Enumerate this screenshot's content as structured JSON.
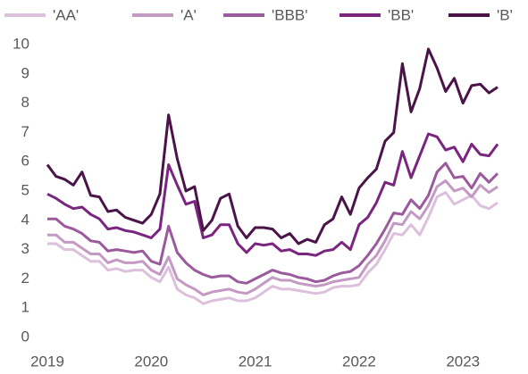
{
  "chart_data": {
    "type": "line",
    "categories": [
      "2019",
      null,
      null,
      null,
      null,
      null,
      null,
      null,
      null,
      null,
      null,
      null,
      "2020",
      null,
      null,
      null,
      null,
      null,
      null,
      null,
      null,
      null,
      null,
      null,
      "2021",
      null,
      null,
      null,
      null,
      null,
      null,
      null,
      null,
      null,
      null,
      null,
      "2022",
      null,
      null,
      null,
      null,
      null,
      null,
      null,
      null,
      null,
      null,
      null,
      "2023",
      null,
      null,
      null,
      null
    ],
    "ylim": [
      0,
      10
    ],
    "yticks": [
      0,
      1,
      2,
      3,
      4,
      5,
      6,
      7,
      8,
      9,
      10
    ],
    "grid": false,
    "legend": "top",
    "series": [
      {
        "name": "'AA'",
        "color": "#dcc0dc",
        "values": [
          3.2,
          3.2,
          3.0,
          3.0,
          2.8,
          2.6,
          2.6,
          2.3,
          2.35,
          2.25,
          2.3,
          2.3,
          2.05,
          1.9,
          2.4,
          1.65,
          1.45,
          1.35,
          1.15,
          1.25,
          1.3,
          1.35,
          1.25,
          1.25,
          1.35,
          1.55,
          1.75,
          1.65,
          1.65,
          1.6,
          1.55,
          1.5,
          1.55,
          1.7,
          1.75,
          1.75,
          1.8,
          2.2,
          2.5,
          3.0,
          3.55,
          3.5,
          3.85,
          3.5,
          4.1,
          4.8,
          4.95,
          4.55,
          4.7,
          4.85,
          4.5,
          4.4,
          4.6
        ]
      },
      {
        "name": "'A'",
        "color": "#c49ac4",
        "values": [
          3.5,
          3.5,
          3.25,
          3.25,
          3.05,
          2.85,
          2.85,
          2.55,
          2.65,
          2.55,
          2.55,
          2.6,
          2.3,
          2.15,
          2.75,
          2.0,
          1.8,
          1.65,
          1.45,
          1.55,
          1.6,
          1.65,
          1.55,
          1.5,
          1.65,
          1.85,
          2.05,
          1.95,
          1.95,
          1.85,
          1.8,
          1.75,
          1.8,
          1.9,
          1.95,
          2.0,
          2.05,
          2.5,
          2.8,
          3.3,
          3.9,
          3.85,
          4.3,
          4.05,
          4.5,
          5.15,
          5.35,
          5.0,
          5.1,
          4.8,
          5.2,
          4.95,
          5.15
        ]
      },
      {
        "name": "'BBB'",
        "color": "#9a5a9c",
        "values": [
          4.05,
          4.05,
          3.8,
          3.7,
          3.55,
          3.3,
          3.25,
          2.95,
          3.0,
          2.95,
          2.9,
          2.95,
          2.6,
          2.5,
          3.8,
          2.9,
          2.55,
          2.3,
          2.15,
          2.05,
          2.1,
          2.1,
          1.9,
          1.85,
          2.0,
          2.15,
          2.3,
          2.2,
          2.15,
          2.05,
          2.0,
          1.9,
          1.95,
          2.1,
          2.2,
          2.25,
          2.45,
          2.8,
          3.2,
          3.7,
          4.25,
          4.2,
          4.7,
          4.4,
          4.85,
          5.65,
          5.95,
          5.45,
          5.5,
          5.1,
          5.6,
          5.3,
          5.6
        ]
      },
      {
        "name": "'BB'",
        "color": "#7a2580",
        "values": [
          4.9,
          4.75,
          4.55,
          4.4,
          4.45,
          4.2,
          4.05,
          3.7,
          3.75,
          3.65,
          3.6,
          3.5,
          3.4,
          3.7,
          5.9,
          5.2,
          4.55,
          4.65,
          3.4,
          3.5,
          3.85,
          3.85,
          3.2,
          2.9,
          3.2,
          3.15,
          3.2,
          2.95,
          3.0,
          2.85,
          2.85,
          2.8,
          2.95,
          3.0,
          3.25,
          3.0,
          3.85,
          4.1,
          4.6,
          5.3,
          5.2,
          6.35,
          5.45,
          6.2,
          6.95,
          6.85,
          6.4,
          6.5,
          6.0,
          6.6,
          6.25,
          6.2,
          6.6
        ]
      },
      {
        "name": "'B'",
        "color": "#4a1448",
        "values": [
          5.9,
          5.5,
          5.4,
          5.2,
          5.65,
          4.85,
          4.8,
          4.3,
          4.35,
          4.1,
          4.0,
          3.9,
          4.2,
          4.9,
          7.6,
          6.1,
          5.0,
          5.15,
          3.65,
          4.0,
          4.75,
          4.9,
          3.8,
          3.4,
          3.75,
          3.75,
          3.7,
          3.4,
          3.55,
          3.2,
          3.35,
          3.25,
          3.85,
          4.05,
          4.8,
          4.2,
          5.1,
          5.45,
          5.75,
          6.7,
          7.0,
          9.35,
          7.7,
          8.5,
          9.85,
          9.2,
          8.4,
          8.85,
          8.0,
          8.6,
          8.65,
          8.35,
          8.55
        ]
      }
    ]
  }
}
